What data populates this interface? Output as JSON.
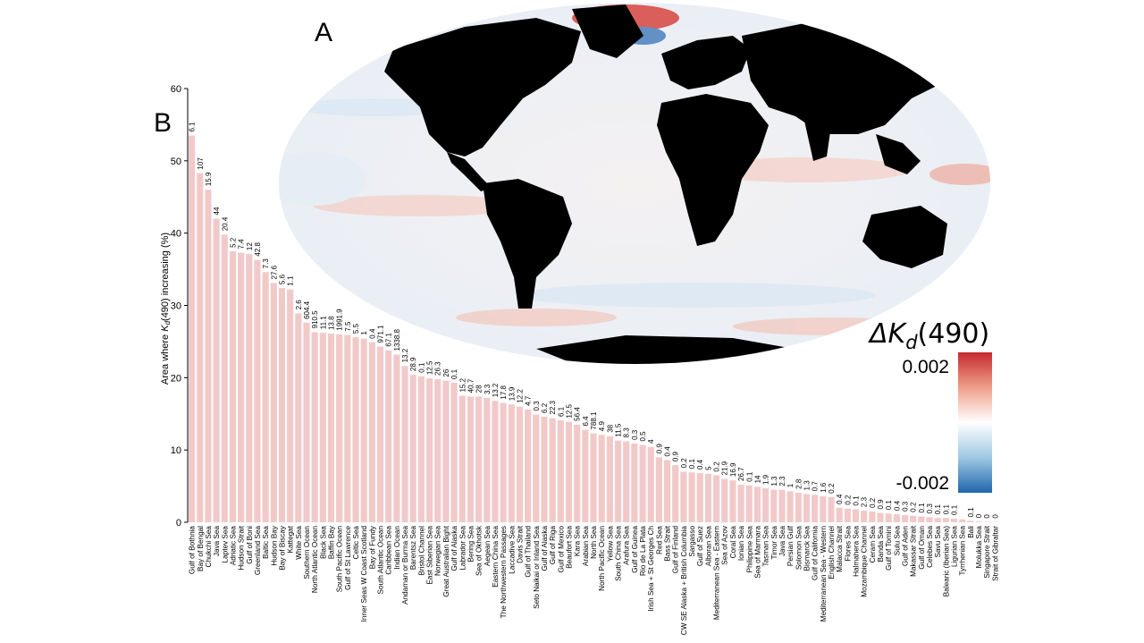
{
  "panels": {
    "a_label": "A",
    "b_label": "B"
  },
  "map": {
    "colorbar": {
      "title_prefix": "ΔK",
      "title_sub": "d",
      "title_suffix": "(490)",
      "max_label": "0.002",
      "min_label": "-0.002",
      "colors": {
        "high": "#c62a2f",
        "mid": "#ffffff",
        "low": "#2166ac"
      }
    },
    "land_color": "#000000"
  },
  "chart_data": {
    "type": "bar",
    "ylabel_prefix": "Area where ",
    "ylabel_k": "K",
    "ylabel_sub": "d",
    "ylabel_suffix": "(490) increasing (%)",
    "ylim": [
      0,
      60
    ],
    "yticks": [
      "0",
      "10",
      "20",
      "30",
      "40",
      "50",
      "60"
    ],
    "bar_color": "#f2c9c9",
    "categories": [
      "Gulf of Bothnia",
      "Bay of Bengal",
      "Chukchi Sea",
      "Java Sea",
      "Laptev Sea",
      "Adriatic Sea",
      "Hudson Strait",
      "Gulf of Boni",
      "Greenland Sea",
      "Baltic Sea",
      "Hudson Bay",
      "Bay of Biscay",
      "Kattegat",
      "White Sea",
      "Southern Ocean",
      "North Atlantic Ocean",
      "Black Sea",
      "Baffin Bay",
      "South Pacific Ocean",
      "Gulf of St Lawrence",
      "Celtic Sea",
      "Inner Seas W Coast Scotland",
      "Bay of Fundy",
      "South Atlantic Ocean",
      "Caribbean Sea",
      "Indian Ocean",
      "Andaman or Burma Sea",
      "Barentsz Sea",
      "Bristol Channel",
      "East Siberian Sea",
      "Norwegian Sea",
      "Great Australian Bight",
      "Gulf of Alaska",
      "Labrador Sea",
      "Bering Sea",
      "Sea of Okhotsk",
      "Aegean Sea",
      "Eastern China Sea",
      "The Northwestern Passages",
      "Laccadive Sea",
      "Davis Strait",
      "Gulf of Thailand",
      "Seto Naikai or Inland Sea",
      "Gulf of Alaska",
      "Gulf of Riga",
      "Gulf of Mexico",
      "Beaufort Sea",
      "Kara Sea",
      "Arabian Sea",
      "North Sea",
      "North Pacific Ocean",
      "Yellow Sea",
      "South China Sea",
      "Arafura Sea",
      "Gulf of Guinea",
      "Rio de La Plata",
      "Irish Sea + St Georges Ch",
      "Red Sea",
      "Bass Strait",
      "Gulf of Finland",
      "CW SE Alaska + British Columbia",
      "Sargasso",
      "Gulf of Suez",
      "Alboran Sea",
      "Mediterranean Sea - Eastern",
      "Sea of Azov",
      "Coral Sea",
      "Ionian Sea",
      "Philippine Sea",
      "Sea of Marmara",
      "Tasman Sea",
      "Timor Sea",
      "Java Sea",
      "Persian Gulf",
      "Solomon Sea",
      "Bismarck Sea",
      "Gulf of California",
      "Mediterranean Sea - Western",
      "English Channel",
      "Malacca Strait",
      "Flores Sea",
      "Halmahera Sea",
      "Mozambique Channel",
      "Ceram Sea",
      "Banda Sea",
      "Gulf of Tomini",
      "Sulu Sea",
      "Gulf of Aden",
      "Makassar Strait",
      "Gulf of Oman",
      "Celebes Sea",
      "Savu Sea",
      "Balearic (Iberian Sea)",
      "Ligurian Sea",
      "Tyrrhenian Sea",
      "Bali",
      "Molukka Sea",
      "Singapore Strait",
      "Strait of Gibraltar"
    ],
    "values": [
      53.5,
      48.3,
      46.0,
      42.0,
      39.8,
      37.5,
      37.3,
      37.1,
      36.3,
      34.6,
      33.1,
      32.4,
      32.2,
      28.9,
      27.6,
      26.3,
      26.2,
      26.1,
      26.0,
      25.9,
      25.6,
      25.4,
      24.9,
      24.3,
      23.8,
      23.2,
      21.6,
      20.4,
      20.2,
      19.9,
      19.8,
      19.6,
      19.3,
      17.5,
      17.4,
      17.4,
      17.2,
      16.8,
      16.5,
      16.3,
      16.0,
      15.6,
      14.9,
      14.6,
      14.4,
      14.1,
      13.9,
      13.5,
      12.8,
      12.3,
      12.1,
      11.9,
      11.3,
      11.2,
      10.9,
      10.7,
      10.4,
      9.0,
      8.6,
      7.9,
      7.0,
      6.9,
      6.8,
      6.7,
      6.5,
      6.0,
      5.8,
      5.2,
      5.1,
      4.9,
      4.7,
      4.5,
      4.5,
      4.3,
      4.1,
      3.9,
      3.8,
      3.6,
      3.5,
      2.0,
      1.9,
      1.8,
      1.6,
      1.5,
      1.3,
      1.2,
      1.1,
      1.0,
      0.9,
      0.8,
      0.7,
      0.6,
      0.6,
      0.5,
      0.4,
      0.2,
      0.1,
      0.05,
      0.05
    ],
    "data_labels": [
      "6.1",
      "107",
      "15.9",
      "44",
      "20.4",
      "5.2",
      "7.4",
      "12",
      "42.8",
      "7.3",
      "27.6",
      "5.6",
      "1.1",
      "2.6",
      "604.4",
      "910.5",
      "11.1",
      "13.8",
      "1991.9",
      "7.5",
      "5.5",
      "1",
      "0.4",
      "971.1",
      "67.1",
      "1338.8",
      "13.2",
      "28.9",
      "0.1",
      "12.5",
      "26.3",
      "26",
      "0.1",
      "15.2",
      "40.7",
      "28",
      "3.3",
      "13.2",
      "17.8",
      "13.9",
      "12.2",
      "4.7",
      "0.3",
      "6.2",
      "22.3",
      "6.1",
      "12.5",
      "56.4",
      "6.4",
      "788.1",
      "4.9",
      "38",
      "11.5",
      "8.3",
      "0.3",
      "0.5",
      "4",
      "0.9",
      "0.4",
      "0.9",
      "0.2",
      "0.1",
      "0.4",
      "5",
      "0.2",
      "21.9",
      "16.9",
      "26.7",
      "0.1",
      "14",
      "1.9",
      "1.3",
      "2.3",
      "1",
      "2.8",
      "1.3",
      "0.7",
      "1.6",
      "0.2",
      "0.4",
      "0.2",
      "0.1",
      "2.3",
      "0.2",
      "0.9",
      "0.1",
      "0.4",
      "0.3",
      "0.2",
      "0.1",
      "0.3",
      "0.1",
      "0.1",
      "0.1",
      "",
      "0.1",
      "0",
      "0",
      "0"
    ]
  }
}
